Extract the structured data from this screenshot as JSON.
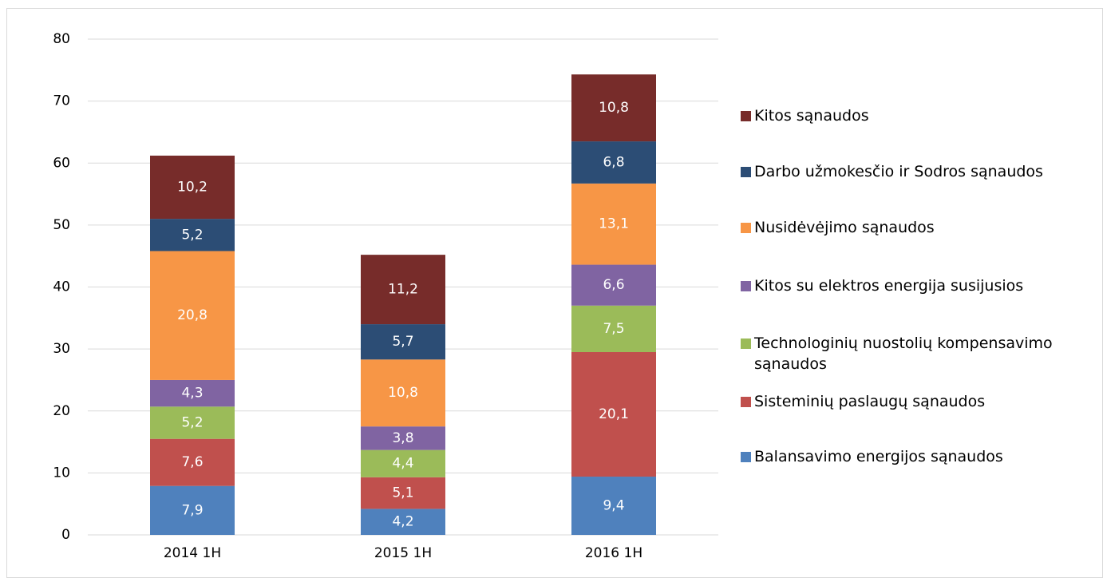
{
  "chart_data": {
    "type": "bar",
    "stacked": true,
    "categories": [
      "2014 1H",
      "2015 1H",
      "2016 1H"
    ],
    "ylim": [
      0,
      80
    ],
    "yticks": [
      0,
      10,
      20,
      30,
      40,
      50,
      60,
      70,
      80
    ],
    "grid": true,
    "series": [
      {
        "name": "Balansavimo energijos sąnaudos",
        "color": "#4f81bd",
        "values": [
          7.9,
          4.2,
          9.4
        ],
        "value_labels": [
          "7,9",
          "4,2",
          "9,4"
        ]
      },
      {
        "name": "Sisteminių paslaugų sąnaudos",
        "color": "#c0504d",
        "values": [
          7.6,
          5.1,
          20.1
        ],
        "value_labels": [
          "7,6",
          "5,1",
          "20,1"
        ]
      },
      {
        "name": "Technologinių nuostolių kompensavimo sąnaudos",
        "color": "#9bbb59",
        "values": [
          5.2,
          4.4,
          7.5
        ],
        "value_labels": [
          "5,2",
          "4,4",
          "7,5"
        ]
      },
      {
        "name": "Kitos su elektros energija susijusios",
        "color": "#8064a2",
        "values": [
          4.3,
          3.8,
          6.6
        ],
        "value_labels": [
          "4,3",
          "3,8",
          "6,6"
        ]
      },
      {
        "name": "Nusidėvėjimo sąnaudos",
        "color": "#f79646",
        "values": [
          20.8,
          10.8,
          13.1
        ],
        "value_labels": [
          "20,8",
          "10,8",
          "13,1"
        ]
      },
      {
        "name": "Darbo užmokesčio ir Sodros sąnaudos",
        "color": "#2c4d75",
        "values": [
          5.2,
          5.7,
          6.8
        ],
        "value_labels": [
          "5,2",
          "5,7",
          "6,8"
        ]
      },
      {
        "name": "Kitos sąnaudos",
        "color": "#772c2a",
        "values": [
          10.2,
          11.2,
          10.8
        ],
        "value_labels": [
          "10,2",
          "11,2",
          "10,8"
        ]
      }
    ]
  }
}
